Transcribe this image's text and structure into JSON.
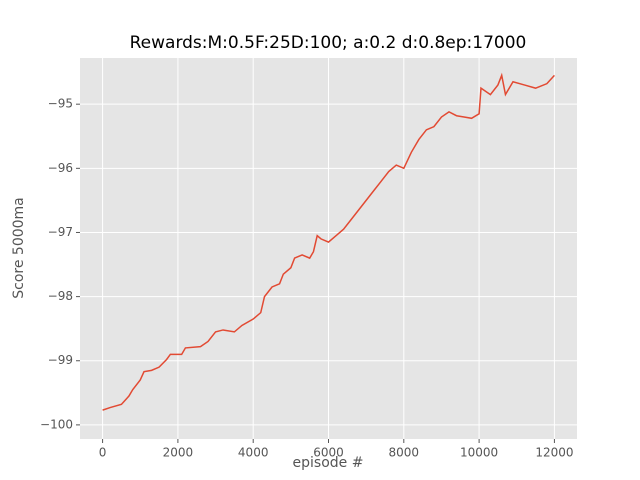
{
  "chart_data": {
    "type": "line",
    "title": "Rewards:M:0.5F:25D:100; a:0.2 d:0.8ep:17000",
    "x_label": "episode #",
    "y_label": "Score 5000ma",
    "x": [
      0,
      200,
      500,
      700,
      800,
      1000,
      1100,
      1300,
      1500,
      1700,
      1800,
      2100,
      2200,
      2600,
      2800,
      3000,
      3200,
      3500,
      3700,
      4000,
      4200,
      4300,
      4500,
      4700,
      4800,
      5000,
      5100,
      5300,
      5500,
      5600,
      5700,
      5800,
      6000,
      6200,
      6400,
      6600,
      6800,
      7000,
      7200,
      7400,
      7600,
      7800,
      8000,
      8200,
      8400,
      8600,
      8800,
      9000,
      9200,
      9400,
      9600,
      9800,
      10000,
      10050,
      10300,
      10500,
      10600,
      10700,
      10900,
      11200,
      11500,
      11800,
      12000
    ],
    "series": [
      {
        "color": "#e24a33",
        "values": [
          -99.77,
          -99.73,
          -99.68,
          -99.55,
          -99.45,
          -99.3,
          -99.17,
          -99.15,
          -99.1,
          -98.98,
          -98.9,
          -98.9,
          -98.8,
          -98.78,
          -98.7,
          -98.55,
          -98.52,
          -98.55,
          -98.45,
          -98.35,
          -98.25,
          -98.0,
          -97.85,
          -97.8,
          -97.65,
          -97.55,
          -97.4,
          -97.35,
          -97.4,
          -97.3,
          -97.05,
          -97.1,
          -97.15,
          -97.05,
          -96.95,
          -96.8,
          -96.65,
          -96.5,
          -96.35,
          -96.2,
          -96.05,
          -95.95,
          -96.0,
          -95.75,
          -95.55,
          -95.4,
          -95.35,
          -95.2,
          -95.12,
          -95.18,
          -95.2,
          -95.22,
          -95.15,
          -94.75,
          -94.85,
          -94.7,
          -94.55,
          -94.85,
          -94.65,
          -94.7,
          -94.75,
          -94.68,
          -94.55
        ]
      }
    ],
    "xlim": [
      -600,
      12600
    ],
    "ylim": [
      -100.22,
      -94.28
    ],
    "xticks": [
      0,
      2000,
      4000,
      6000,
      8000,
      10000,
      12000
    ],
    "yticks": [
      {
        "value": -100,
        "label": "−100"
      },
      {
        "value": -99,
        "label": "−99"
      },
      {
        "value": -98,
        "label": "−98"
      },
      {
        "value": -97,
        "label": "−97"
      },
      {
        "value": -96,
        "label": "−96"
      },
      {
        "value": -95,
        "label": "−95"
      }
    ],
    "grid": true
  }
}
